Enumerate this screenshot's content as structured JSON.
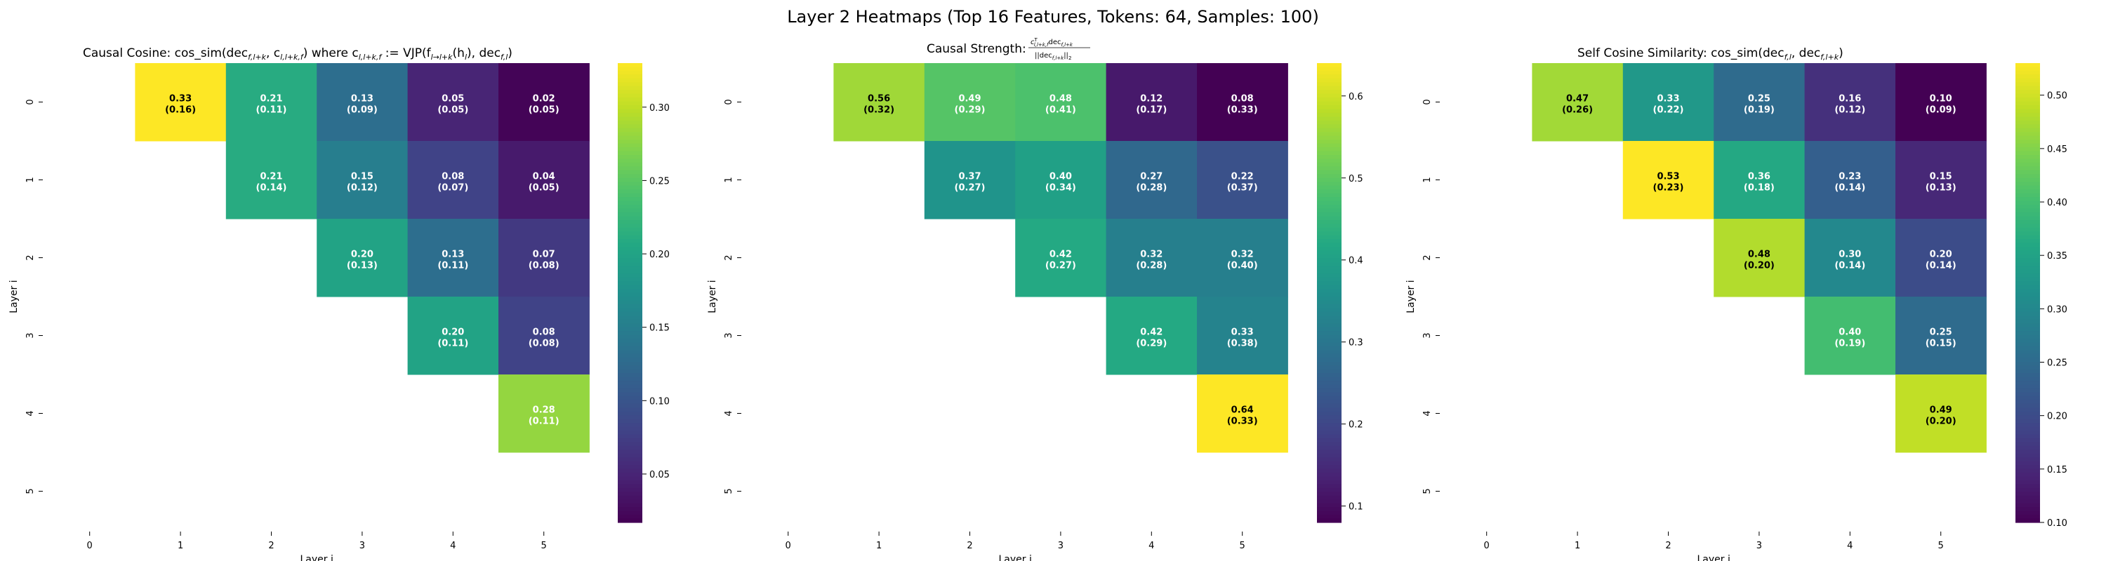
{
  "suptitle": "Layer 2 Heatmaps (Top 16 Features, Tokens: 64, Samples: 100)",
  "chart_data": [
    {
      "type": "heatmap",
      "title": "Causal Cosine: cos_sim(dec_{f,l+k}, c_{l,l+k,f}) where c_{l,l+k,f} := VJP(f_{l→l+k}(h_l), dec_{f,l})",
      "title_parts": {
        "p1": "Causal Cosine: cos_sim(dec",
        "s1": "f,l+k",
        "p2": ", c",
        "s2": "l,l+k,f",
        "p3": ") where c",
        "s3": "l,l+k,f",
        "p4": " := VJP(f",
        "s4": "l→l+k",
        "p5": "(h",
        "s5": "l",
        "p6": "), dec",
        "s6": "f,l",
        "p7": ")"
      },
      "xlabel": "Layer j",
      "ylabel": "Layer i",
      "x_ticks": [
        "0",
        "1",
        "2",
        "3",
        "4",
        "5"
      ],
      "y_ticks": [
        "0",
        "1",
        "2",
        "3",
        "4",
        "5"
      ],
      "colormap": "viridis",
      "vmin": 0.017,
      "vmax": 0.33,
      "colorbar_ticks": [
        0.05,
        0.1,
        0.15,
        0.2,
        0.25,
        0.3
      ],
      "colorbar_tick_labels": [
        "0.05",
        "0.10",
        "0.15",
        "0.20",
        "0.25",
        "0.30"
      ],
      "cells": [
        {
          "row": 0,
          "col": 1,
          "value": 0.33,
          "std": 0.16,
          "label": "0.33",
          "sublabel": "(0.16)"
        },
        {
          "row": 0,
          "col": 2,
          "value": 0.21,
          "std": 0.11,
          "label": "0.21",
          "sublabel": "(0.11)"
        },
        {
          "row": 0,
          "col": 3,
          "value": 0.13,
          "std": 0.09,
          "label": "0.13",
          "sublabel": "(0.09)"
        },
        {
          "row": 0,
          "col": 4,
          "value": 0.05,
          "std": 0.05,
          "label": "0.05",
          "sublabel": "(0.05)"
        },
        {
          "row": 0,
          "col": 5,
          "value": 0.02,
          "std": 0.05,
          "label": "0.02",
          "sublabel": "(0.05)"
        },
        {
          "row": 1,
          "col": 2,
          "value": 0.21,
          "std": 0.14,
          "label": "0.21",
          "sublabel": "(0.14)"
        },
        {
          "row": 1,
          "col": 3,
          "value": 0.15,
          "std": 0.12,
          "label": "0.15",
          "sublabel": "(0.12)"
        },
        {
          "row": 1,
          "col": 4,
          "value": 0.08,
          "std": 0.07,
          "label": "0.08",
          "sublabel": "(0.07)"
        },
        {
          "row": 1,
          "col": 5,
          "value": 0.04,
          "std": 0.05,
          "label": "0.04",
          "sublabel": "(0.05)"
        },
        {
          "row": 2,
          "col": 3,
          "value": 0.2,
          "std": 0.13,
          "label": "0.20",
          "sublabel": "(0.13)"
        },
        {
          "row": 2,
          "col": 4,
          "value": 0.13,
          "std": 0.11,
          "label": "0.13",
          "sublabel": "(0.11)"
        },
        {
          "row": 2,
          "col": 5,
          "value": 0.07,
          "std": 0.08,
          "label": "0.07",
          "sublabel": "(0.08)"
        },
        {
          "row": 3,
          "col": 4,
          "value": 0.2,
          "std": 0.11,
          "label": "0.20",
          "sublabel": "(0.11)"
        },
        {
          "row": 3,
          "col": 5,
          "value": 0.08,
          "std": 0.08,
          "label": "0.08",
          "sublabel": "(0.08)"
        },
        {
          "row": 4,
          "col": 5,
          "value": 0.28,
          "std": 0.11,
          "label": "0.28",
          "sublabel": "(0.11)"
        }
      ]
    },
    {
      "type": "heatmap",
      "title": "Causal Strength: c_{l,l+k,f}^T dec_{f,l+k} / ||dec_{f,l+k}||_2",
      "title_parts": {
        "prefix": "Causal Strength: ",
        "num_a": "c",
        "num_sup": "T",
        "num_sub": "l,l+k,f",
        "num_b": "dec",
        "num_sub2": "f,l+k",
        "den": "||dec",
        "den_sub": "f,l+k",
        "den_b": "||",
        "den_sub2": "2"
      },
      "xlabel": "Layer j",
      "ylabel": "Layer i",
      "x_ticks": [
        "0",
        "1",
        "2",
        "3",
        "4",
        "5"
      ],
      "y_ticks": [
        "0",
        "1",
        "2",
        "3",
        "4",
        "5"
      ],
      "colormap": "viridis",
      "vmin": 0.08,
      "vmax": 0.64,
      "colorbar_ticks": [
        0.1,
        0.2,
        0.3,
        0.4,
        0.5,
        0.6
      ],
      "colorbar_tick_labels": [
        "0.1",
        "0.2",
        "0.3",
        "0.4",
        "0.5",
        "0.6"
      ],
      "cells": [
        {
          "row": 0,
          "col": 1,
          "value": 0.56,
          "std": 0.32,
          "label": "0.56",
          "sublabel": "(0.32)"
        },
        {
          "row": 0,
          "col": 2,
          "value": 0.49,
          "std": 0.29,
          "label": "0.49",
          "sublabel": "(0.29)"
        },
        {
          "row": 0,
          "col": 3,
          "value": 0.48,
          "std": 0.41,
          "label": "0.48",
          "sublabel": "(0.41)"
        },
        {
          "row": 0,
          "col": 4,
          "value": 0.12,
          "std": 0.17,
          "label": "0.12",
          "sublabel": "(0.17)"
        },
        {
          "row": 0,
          "col": 5,
          "value": 0.08,
          "std": 0.33,
          "label": "0.08",
          "sublabel": "(0.33)"
        },
        {
          "row": 1,
          "col": 2,
          "value": 0.37,
          "std": 0.27,
          "label": "0.37",
          "sublabel": "(0.27)"
        },
        {
          "row": 1,
          "col": 3,
          "value": 0.4,
          "std": 0.34,
          "label": "0.40",
          "sublabel": "(0.34)"
        },
        {
          "row": 1,
          "col": 4,
          "value": 0.27,
          "std": 0.28,
          "label": "0.27",
          "sublabel": "(0.28)"
        },
        {
          "row": 1,
          "col": 5,
          "value": 0.22,
          "std": 0.37,
          "label": "0.22",
          "sublabel": "(0.37)"
        },
        {
          "row": 2,
          "col": 3,
          "value": 0.42,
          "std": 0.27,
          "label": "0.42",
          "sublabel": "(0.27)"
        },
        {
          "row": 2,
          "col": 4,
          "value": 0.32,
          "std": 0.28,
          "label": "0.32",
          "sublabel": "(0.28)"
        },
        {
          "row": 2,
          "col": 5,
          "value": 0.32,
          "std": 0.4,
          "label": "0.32",
          "sublabel": "(0.40)"
        },
        {
          "row": 3,
          "col": 4,
          "value": 0.42,
          "std": 0.29,
          "label": "0.42",
          "sublabel": "(0.29)"
        },
        {
          "row": 3,
          "col": 5,
          "value": 0.33,
          "std": 0.38,
          "label": "0.33",
          "sublabel": "(0.38)"
        },
        {
          "row": 4,
          "col": 5,
          "value": 0.64,
          "std": 0.33,
          "label": "0.64",
          "sublabel": "(0.33)"
        }
      ]
    },
    {
      "type": "heatmap",
      "title": "Self Cosine Similarity: cos_sim(dec_{f,l}, dec_{f,l+k})",
      "title_parts": {
        "p1": "Self Cosine Similarity: cos_sim(dec",
        "s1": "f,l",
        "p2": ", dec",
        "s2": "f,l+k",
        "p3": ")"
      },
      "xlabel": "Layer j",
      "ylabel": "Layer i",
      "x_ticks": [
        "0",
        "1",
        "2",
        "3",
        "4",
        "5"
      ],
      "y_ticks": [
        "0",
        "1",
        "2",
        "3",
        "4",
        "5"
      ],
      "colormap": "viridis",
      "vmin": 0.1,
      "vmax": 0.53,
      "colorbar_ticks": [
        0.1,
        0.15,
        0.2,
        0.25,
        0.3,
        0.35,
        0.4,
        0.45,
        0.5
      ],
      "colorbar_tick_labels": [
        "0.10",
        "0.15",
        "0.20",
        "0.25",
        "0.30",
        "0.35",
        "0.40",
        "0.45",
        "0.50"
      ],
      "cells": [
        {
          "row": 0,
          "col": 1,
          "value": 0.47,
          "std": 0.26,
          "label": "0.47",
          "sublabel": "(0.26)"
        },
        {
          "row": 0,
          "col": 2,
          "value": 0.33,
          "std": 0.22,
          "label": "0.33",
          "sublabel": "(0.22)"
        },
        {
          "row": 0,
          "col": 3,
          "value": 0.25,
          "std": 0.19,
          "label": "0.25",
          "sublabel": "(0.19)"
        },
        {
          "row": 0,
          "col": 4,
          "value": 0.16,
          "std": 0.12,
          "label": "0.16",
          "sublabel": "(0.12)"
        },
        {
          "row": 0,
          "col": 5,
          "value": 0.1,
          "std": 0.09,
          "label": "0.10",
          "sublabel": "(0.09)"
        },
        {
          "row": 1,
          "col": 2,
          "value": 0.53,
          "std": 0.23,
          "label": "0.53",
          "sublabel": "(0.23)"
        },
        {
          "row": 1,
          "col": 3,
          "value": 0.36,
          "std": 0.18,
          "label": "0.36",
          "sublabel": "(0.18)"
        },
        {
          "row": 1,
          "col": 4,
          "value": 0.23,
          "std": 0.14,
          "label": "0.23",
          "sublabel": "(0.14)"
        },
        {
          "row": 1,
          "col": 5,
          "value": 0.15,
          "std": 0.13,
          "label": "0.15",
          "sublabel": "(0.13)"
        },
        {
          "row": 2,
          "col": 3,
          "value": 0.48,
          "std": 0.2,
          "label": "0.48",
          "sublabel": "(0.20)"
        },
        {
          "row": 2,
          "col": 4,
          "value": 0.3,
          "std": 0.14,
          "label": "0.30",
          "sublabel": "(0.14)"
        },
        {
          "row": 2,
          "col": 5,
          "value": 0.2,
          "std": 0.14,
          "label": "0.20",
          "sublabel": "(0.14)"
        },
        {
          "row": 3,
          "col": 4,
          "value": 0.4,
          "std": 0.19,
          "label": "0.40",
          "sublabel": "(0.19)"
        },
        {
          "row": 3,
          "col": 5,
          "value": 0.25,
          "std": 0.15,
          "label": "0.25",
          "sublabel": "(0.15)"
        },
        {
          "row": 4,
          "col": 5,
          "value": 0.49,
          "std": 0.2,
          "label": "0.49",
          "sublabel": "(0.20)"
        }
      ]
    }
  ]
}
